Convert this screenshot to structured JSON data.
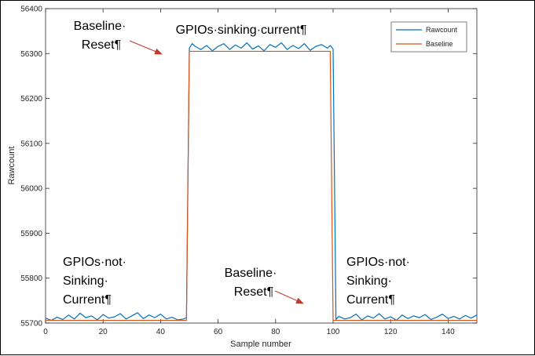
{
  "chart_data": {
    "type": "line",
    "xlabel": "Sample number",
    "ylabel": "Rawcount",
    "xlim": [
      0,
      150
    ],
    "ylim": [
      55700,
      56400
    ],
    "xticks": [
      0,
      20,
      40,
      60,
      80,
      100,
      120,
      140
    ],
    "yticks": [
      55700,
      55800,
      55900,
      56000,
      56100,
      56200,
      56300,
      56400
    ],
    "grid": false,
    "legend_position": "top-right",
    "colors": {
      "Rawcount": "#0072BD",
      "Baseline": "#D95319",
      "arrow": "#C0392B"
    },
    "series": [
      {
        "name": "Rawcount",
        "x": [
          0,
          2,
          4,
          6,
          8,
          10,
          12,
          14,
          16,
          18,
          20,
          22,
          24,
          26,
          28,
          30,
          32,
          34,
          36,
          38,
          40,
          42,
          44,
          46,
          48,
          49,
          50,
          51,
          52,
          54,
          56,
          58,
          60,
          62,
          64,
          66,
          68,
          70,
          72,
          74,
          76,
          78,
          80,
          82,
          84,
          86,
          88,
          90,
          92,
          94,
          96,
          98,
          99,
          100,
          101,
          102,
          104,
          106,
          108,
          110,
          112,
          114,
          116,
          118,
          120,
          122,
          124,
          126,
          128,
          130,
          132,
          134,
          136,
          138,
          140,
          142,
          144,
          146,
          148,
          150
        ],
        "y": [
          55711,
          55706,
          55713,
          55708,
          55718,
          55709,
          55722,
          55712,
          55716,
          55707,
          55719,
          55711,
          55714,
          55721,
          55709,
          55716,
          55723,
          55710,
          55718,
          55712,
          55720,
          55709,
          55713,
          55707,
          55709,
          55712,
          56312,
          56322,
          56316,
          56309,
          56318,
          56306,
          56316,
          56322,
          56309,
          56319,
          56312,
          56324,
          56310,
          56317,
          56306,
          56320,
          56314,
          56324,
          56309,
          56318,
          56311,
          56322,
          56307,
          56316,
          56320,
          56312,
          56318,
          56310,
          55708,
          55715,
          55709,
          55712,
          55720,
          55707,
          55716,
          55711,
          55721,
          55709,
          55714,
          55706,
          55718,
          55710,
          55716,
          55712,
          55719,
          55708,
          55713,
          55720,
          55710,
          55715,
          55709,
          55717,
          55711,
          55718
        ]
      },
      {
        "name": "Baseline",
        "x": [
          0,
          49,
          50,
          99,
          100,
          150
        ],
        "y": [
          55706,
          55706,
          56305,
          56305,
          55706,
          55706
        ]
      }
    ],
    "annotations": [
      {
        "id": "reset-top",
        "lines": [
          "Baseline·",
          "Reset¶"
        ]
      },
      {
        "id": "sinking",
        "lines": [
          "GPIOs·sinking·current¶"
        ]
      },
      {
        "id": "not-left",
        "lines": [
          "GPIOs·not·",
          "Sinking·",
          "Current¶"
        ]
      },
      {
        "id": "reset-mid",
        "lines": [
          "Baseline·",
          "Reset¶"
        ]
      },
      {
        "id": "not-right",
        "lines": [
          "GPIOs·not·",
          "Sinking·",
          "Current¶"
        ]
      }
    ]
  }
}
